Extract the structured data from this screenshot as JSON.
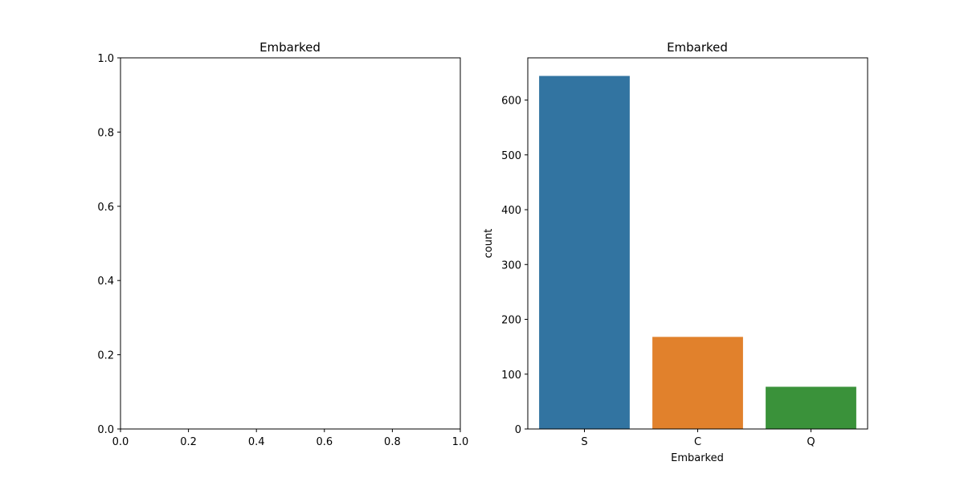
{
  "chart_data": [
    {
      "type": "bar",
      "title": "Embarked",
      "xlabel": "",
      "ylabel": "",
      "categories": [],
      "values": [],
      "xlim": [
        0.0,
        1.0
      ],
      "ylim": [
        0.0,
        1.0
      ],
      "xticks": [
        "0.0",
        "0.2",
        "0.4",
        "0.6",
        "0.8",
        "1.0"
      ],
      "yticks": [
        "0.0",
        "0.2",
        "0.4",
        "0.6",
        "0.8",
        "1.0"
      ],
      "grid": false,
      "legend": "none"
    },
    {
      "type": "bar",
      "title": "Embarked",
      "xlabel": "Embarked",
      "ylabel": "count",
      "categories": [
        "S",
        "C",
        "Q"
      ],
      "values": [
        644,
        168,
        77
      ],
      "colors": [
        "#3274a1",
        "#e1812c",
        "#3a923a"
      ],
      "ylim": [
        0,
        677
      ],
      "yticks": [
        "0",
        "100",
        "200",
        "300",
        "400",
        "500",
        "600"
      ],
      "grid": false,
      "legend": "none"
    }
  ]
}
